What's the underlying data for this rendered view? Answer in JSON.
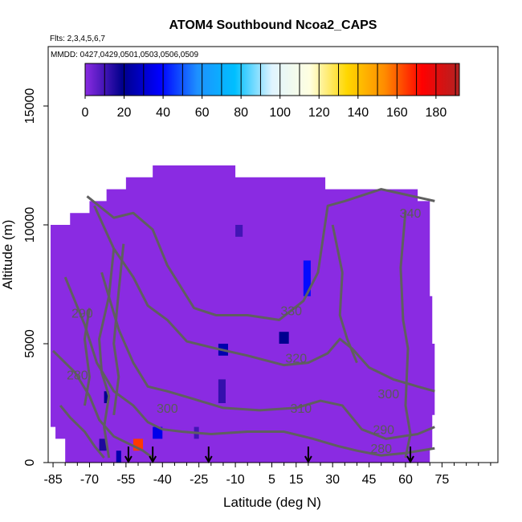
{
  "chart_data": {
    "type": "heatmap",
    "title": "ATOM4 Southbound Ncoa2_CAPS",
    "subtitle_flights": "Flts: 2,3,4,5,6,7",
    "subtitle_dates": "MMDD: 0427,0429,0501,0503,0506,0509",
    "xlabel": "Latitude (deg N)",
    "ylabel": "Altitude (m)",
    "xlim": [
      -87,
      98
    ],
    "ylim": [
      0,
      17500
    ],
    "x_ticks": [
      "-85",
      "-70",
      "-55",
      "-40",
      "-25",
      "-10",
      "5",
      "15",
      "30",
      "45",
      "60",
      "75"
    ],
    "x_tick_values": [
      -85,
      -70,
      -55,
      -40,
      -25,
      -10,
      5,
      15,
      30,
      45,
      60,
      75
    ],
    "y_ticks": [
      "0",
      "5000",
      "10000",
      "15000"
    ],
    "y_tick_values": [
      0,
      5000,
      10000,
      15000
    ],
    "colorbar": {
      "ticks": [
        "0",
        "20",
        "40",
        "60",
        "80",
        "100",
        "120",
        "140",
        "160",
        "180"
      ],
      "range": [
        0,
        192
      ],
      "colors": [
        "#8a2be2",
        "#00008b",
        "#0000ff",
        "#1e90ff",
        "#00bfff",
        "#e0f4ff",
        "#ffffe0",
        "#ffd700",
        "#ff8c00",
        "#ff0000",
        "#b22222"
      ]
    },
    "background_value": 0,
    "background_color": "#8a2be2",
    "contour_labels": [
      {
        "text": "340",
        "lat": 62,
        "alt": 10300
      },
      {
        "text": "330",
        "lat": 13,
        "alt": 6200
      },
      {
        "text": "320",
        "lat": 15,
        "alt": 4200
      },
      {
        "text": "310",
        "lat": 17,
        "alt": 2100
      },
      {
        "text": "300",
        "lat": -38,
        "alt": 2100
      },
      {
        "text": "300",
        "lat": 53,
        "alt": 2700
      },
      {
        "text": "290",
        "lat": -73,
        "alt": 6100
      },
      {
        "text": "290",
        "lat": 51,
        "alt": 1200
      },
      {
        "text": "280",
        "lat": -75,
        "alt": 3500
      },
      {
        "text": "280",
        "lat": 50,
        "alt": 400
      }
    ],
    "flight_markers_lat": [
      -54,
      -44,
      -21,
      20,
      62
    ],
    "hot_spots": [
      {
        "lat_min": -52,
        "lat_max": -48,
        "alt_min": 500,
        "alt_max": 1000,
        "value": 165
      },
      {
        "lat_min": 18,
        "lat_max": 21,
        "alt_min": 7000,
        "alt_max": 8500,
        "value": 40
      },
      {
        "lat_min": 8,
        "lat_max": 12,
        "alt_min": 5000,
        "alt_max": 5500,
        "value": 20
      },
      {
        "lat_min": -17,
        "lat_max": -13,
        "alt_min": 4500,
        "alt_max": 5000,
        "value": 25
      },
      {
        "lat_min": -17,
        "lat_max": -14,
        "alt_min": 2500,
        "alt_max": 3500,
        "value": 12
      },
      {
        "lat_min": -44,
        "lat_max": -40,
        "alt_min": 1000,
        "alt_max": 1500,
        "value": 35
      },
      {
        "lat_min": -64,
        "lat_max": -62,
        "alt_min": 2500,
        "alt_max": 3000,
        "value": 20
      },
      {
        "lat_min": -66,
        "lat_max": -63,
        "alt_min": 500,
        "alt_max": 1000,
        "value": 15
      },
      {
        "lat_min": -59,
        "lat_max": -57,
        "alt_min": 0,
        "alt_max": 500,
        "value": 25
      },
      {
        "lat_min": -27,
        "lat_max": -25,
        "alt_min": 1000,
        "alt_max": 1500,
        "value": 10
      },
      {
        "lat_min": -10,
        "lat_max": -7,
        "alt_min": 9500,
        "alt_max": 10000,
        "value": 10
      }
    ]
  }
}
